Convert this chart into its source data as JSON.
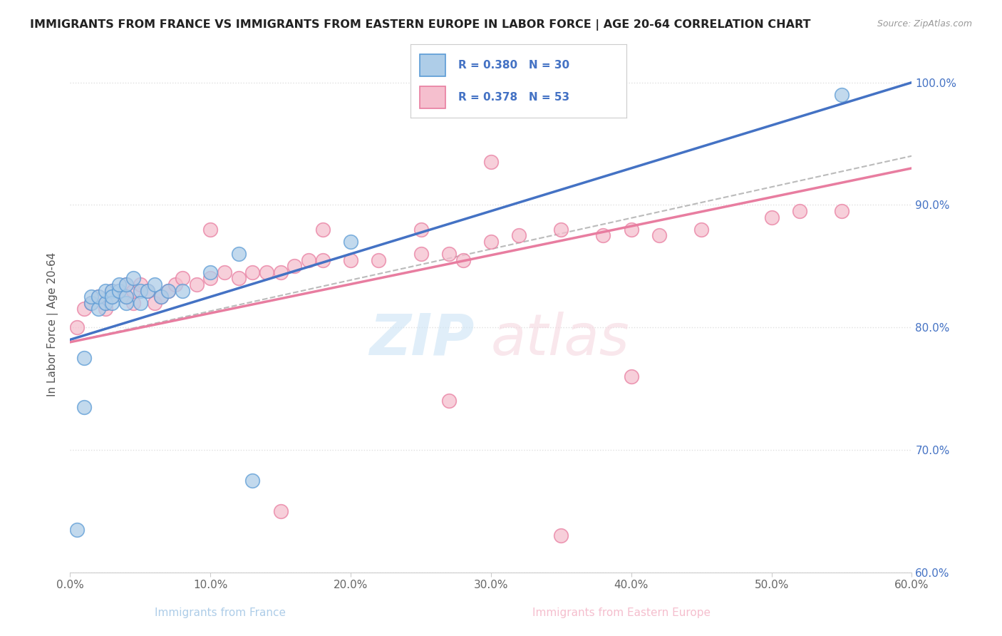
{
  "title": "IMMIGRANTS FROM FRANCE VS IMMIGRANTS FROM EASTERN EUROPE IN LABOR FORCE | AGE 20-64 CORRELATION CHART",
  "source": "Source: ZipAtlas.com",
  "ylabel": "In Labor Force | Age 20-64",
  "legend_R1": "R = 0.380",
  "legend_N1": "N = 30",
  "legend_R2": "R = 0.378",
  "legend_N2": "N = 53",
  "color_france_fill": "#aecde8",
  "color_france_edge": "#5b9bd5",
  "color_eastern_fill": "#f5bfce",
  "color_eastern_edge": "#e87da0",
  "color_france_line": "#4472c4",
  "color_eastern_line": "#e87da0",
  "color_dashed": "#bbbbbb",
  "color_legend_text": "#4472c4",
  "xlim": [
    0.0,
    0.6
  ],
  "ylim": [
    0.6,
    1.005
  ],
  "france_x": [
    0.005,
    0.01,
    0.01,
    0.015,
    0.015,
    0.02,
    0.02,
    0.025,
    0.025,
    0.03,
    0.03,
    0.03,
    0.035,
    0.035,
    0.04,
    0.04,
    0.04,
    0.045,
    0.05,
    0.05,
    0.055,
    0.06,
    0.065,
    0.07,
    0.08,
    0.1,
    0.12,
    0.13,
    0.2,
    0.55
  ],
  "france_y": [
    0.635,
    0.775,
    0.735,
    0.82,
    0.825,
    0.815,
    0.825,
    0.82,
    0.83,
    0.83,
    0.82,
    0.825,
    0.83,
    0.835,
    0.82,
    0.825,
    0.835,
    0.84,
    0.83,
    0.82,
    0.83,
    0.835,
    0.825,
    0.83,
    0.83,
    0.845,
    0.86,
    0.675,
    0.87,
    0.99
  ],
  "eastern_x": [
    0.005,
    0.01,
    0.015,
    0.02,
    0.025,
    0.025,
    0.03,
    0.03,
    0.035,
    0.04,
    0.04,
    0.045,
    0.045,
    0.05,
    0.055,
    0.06,
    0.065,
    0.07,
    0.075,
    0.08,
    0.09,
    0.1,
    0.11,
    0.12,
    0.13,
    0.14,
    0.15,
    0.16,
    0.17,
    0.18,
    0.2,
    0.22,
    0.25,
    0.27,
    0.28,
    0.3,
    0.32,
    0.35,
    0.38,
    0.4,
    0.42,
    0.45,
    0.5,
    0.52,
    0.55,
    0.25,
    0.15,
    0.35,
    0.18,
    0.4,
    0.3,
    0.1,
    0.27
  ],
  "eastern_y": [
    0.8,
    0.815,
    0.82,
    0.825,
    0.815,
    0.82,
    0.825,
    0.83,
    0.83,
    0.825,
    0.835,
    0.82,
    0.83,
    0.835,
    0.83,
    0.82,
    0.825,
    0.83,
    0.835,
    0.84,
    0.835,
    0.84,
    0.845,
    0.84,
    0.845,
    0.845,
    0.845,
    0.85,
    0.855,
    0.855,
    0.855,
    0.855,
    0.86,
    0.86,
    0.855,
    0.87,
    0.875,
    0.88,
    0.875,
    0.88,
    0.875,
    0.88,
    0.89,
    0.895,
    0.895,
    0.88,
    0.65,
    0.63,
    0.88,
    0.76,
    0.935,
    0.88,
    0.74
  ],
  "watermark_zip": "ZIP",
  "watermark_atlas": "atlas",
  "background_color": "#ffffff",
  "grid_color": "#e0e0e0",
  "france_line_y0": 0.79,
  "france_line_y1": 1.0,
  "eastern_line_y0": 0.788,
  "eastern_line_y1": 0.93,
  "dashed_line_y0": 0.788,
  "dashed_line_y1": 0.94
}
